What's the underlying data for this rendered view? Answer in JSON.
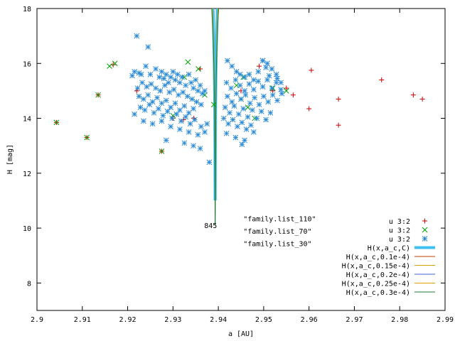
{
  "chart_data": {
    "type": "scatter",
    "xlabel": "a [AU]",
    "ylabel": "H [mag]",
    "xlim": [
      2.9,
      2.99
    ],
    "ylim": [
      7,
      18
    ],
    "x_ticks": [
      "2.9",
      "2.91",
      "2.92",
      "2.93",
      "2.94",
      "2.95",
      "2.96",
      "2.97",
      "2.98",
      "2.99"
    ],
    "y_ticks": [
      "8",
      "10",
      "12",
      "14",
      "16",
      "18"
    ],
    "grid": false,
    "legend_position": "bottom-right",
    "annotations": [
      {
        "text": "845",
        "x": 2.9383,
        "y": 10.1
      },
      {
        "text": "\"family.list_110\"",
        "x": 2.9455,
        "y": 10.35
      },
      {
        "text": "\"family.list_70\"",
        "x": 2.9455,
        "y": 9.9
      },
      {
        "text": "\"family.list_30\"",
        "x": 2.9455,
        "y": 9.45
      }
    ],
    "center_a": 2.9393,
    "curves": [
      {
        "name": "H(x,a_c,C)",
        "color": "#40c0f0",
        "width": 4,
        "C": 5e-05,
        "yoff": 0
      },
      {
        "name": "H(x,a_c,0.1e-4)",
        "color": "#c04000",
        "width": 1,
        "C": 5e-05,
        "yoff": 1.5
      },
      {
        "name": "H(x,a_c,0.15e-4)",
        "color": "#d0a000",
        "width": 1,
        "C": 5e-05,
        "yoff": 0.65
      },
      {
        "name": "H(x,a_c,0.2e-4)",
        "color": "#4060d0",
        "width": 1,
        "C": 5e-05,
        "yoff": 0
      },
      {
        "name": "H(x,a_c,0.25e-4)",
        "color": "#e0a000",
        "width": 1,
        "C": 5e-05,
        "yoff": -0.5
      },
      {
        "name": "H(x,a_c,0.3e-4)",
        "color": "#1a7a3a",
        "width": 1,
        "C": 5e-05,
        "yoff": -0.9
      }
    ],
    "series": [
      {
        "name": "u 3:2",
        "marker": "plus",
        "color": "#cc0000",
        "points": [
          [
            2.9043,
            13.85
          ],
          [
            2.911,
            13.3
          ],
          [
            2.9135,
            14.85
          ],
          [
            2.9168,
            15.95
          ],
          [
            2.9275,
            12.8
          ],
          [
            2.93,
            14.0
          ],
          [
            2.9323,
            13.95
          ],
          [
            2.9346,
            14.0
          ],
          [
            2.936,
            15.8
          ],
          [
            2.945,
            15.0
          ],
          [
            2.955,
            15.1
          ],
          [
            2.9565,
            14.85
          ],
          [
            2.96,
            14.35
          ],
          [
            2.9605,
            15.75
          ],
          [
            2.9665,
            14.7
          ],
          [
            2.9665,
            13.75
          ],
          [
            2.976,
            15.4
          ],
          [
            2.983,
            14.85
          ],
          [
            2.985,
            14.7
          ],
          [
            2.949,
            15.9
          ],
          [
            2.922,
            15.0
          ],
          [
            2.952,
            15.0
          ]
        ]
      },
      {
        "name": "u 3:2",
        "marker": "cross",
        "color": "#00a000",
        "points": [
          [
            2.9043,
            13.85
          ],
          [
            2.911,
            13.3
          ],
          [
            2.9135,
            14.85
          ],
          [
            2.916,
            15.9
          ],
          [
            2.9172,
            16.0
          ],
          [
            2.9275,
            12.8
          ],
          [
            2.93,
            14.1
          ],
          [
            2.9333,
            16.05
          ],
          [
            2.9356,
            15.8
          ],
          [
            2.937,
            14.85
          ],
          [
            2.939,
            14.5
          ],
          [
            2.944,
            15.2
          ],
          [
            2.945,
            14.7
          ],
          [
            2.9455,
            15.5
          ],
          [
            2.9465,
            14.4
          ],
          [
            2.948,
            14.0
          ],
          [
            2.955,
            15.0
          ],
          [
            2.9325,
            15.5
          ],
          [
            2.952,
            15.1
          ]
        ]
      },
      {
        "name": "u 3:2",
        "marker": "star",
        "color": "#2a8ad8",
        "points": [
          [
            2.922,
            17.0
          ],
          [
            2.9245,
            16.6
          ],
          [
            2.9215,
            15.7
          ],
          [
            2.921,
            15.55
          ],
          [
            2.9225,
            15.65
          ],
          [
            2.923,
            15.6
          ],
          [
            2.924,
            15.9
          ],
          [
            2.925,
            15.6
          ],
          [
            2.9262,
            15.8
          ],
          [
            2.927,
            15.5
          ],
          [
            2.9275,
            15.7
          ],
          [
            2.928,
            15.45
          ],
          [
            2.9285,
            15.6
          ],
          [
            2.929,
            15.3
          ],
          [
            2.9295,
            15.5
          ],
          [
            2.93,
            15.7
          ],
          [
            2.9305,
            15.4
          ],
          [
            2.931,
            15.6
          ],
          [
            2.9315,
            15.3
          ],
          [
            2.932,
            15.5
          ],
          [
            2.9328,
            15.2
          ],
          [
            2.9335,
            15.6
          ],
          [
            2.934,
            15.3
          ],
          [
            2.9345,
            15.1
          ],
          [
            2.935,
            15.4
          ],
          [
            2.9355,
            15.0
          ],
          [
            2.936,
            15.2
          ],
          [
            2.9365,
            14.9
          ],
          [
            2.937,
            15.0
          ],
          [
            2.9222,
            15.1
          ],
          [
            2.9232,
            15.3
          ],
          [
            2.9242,
            15.15
          ],
          [
            2.9252,
            15.25
          ],
          [
            2.9262,
            15.1
          ],
          [
            2.9272,
            15.0
          ],
          [
            2.9282,
            15.2
          ],
          [
            2.9292,
            14.95
          ],
          [
            2.9302,
            15.05
          ],
          [
            2.9312,
            14.85
          ],
          [
            2.9322,
            14.95
          ],
          [
            2.9332,
            14.8
          ],
          [
            2.9342,
            14.7
          ],
          [
            2.9352,
            14.6
          ],
          [
            2.9362,
            14.5
          ],
          [
            2.9225,
            14.8
          ],
          [
            2.9235,
            14.7
          ],
          [
            2.9245,
            14.85
          ],
          [
            2.9255,
            14.6
          ],
          [
            2.9265,
            14.75
          ],
          [
            2.9275,
            14.55
          ],
          [
            2.9285,
            14.65
          ],
          [
            2.9295,
            14.4
          ],
          [
            2.9305,
            14.55
          ],
          [
            2.9315,
            14.3
          ],
          [
            2.9325,
            14.45
          ],
          [
            2.9335,
            14.2
          ],
          [
            2.9345,
            14.35
          ],
          [
            2.9228,
            14.4
          ],
          [
            2.9238,
            14.3
          ],
          [
            2.9248,
            14.5
          ],
          [
            2.9258,
            14.2
          ],
          [
            2.9268,
            14.35
          ],
          [
            2.9278,
            14.1
          ],
          [
            2.9288,
            14.25
          ],
          [
            2.9298,
            14.0
          ],
          [
            2.9308,
            14.15
          ],
          [
            2.9318,
            13.9
          ],
          [
            2.9328,
            14.05
          ],
          [
            2.9338,
            13.8
          ],
          [
            2.9348,
            13.95
          ],
          [
            2.9215,
            14.15
          ],
          [
            2.9235,
            13.9
          ],
          [
            2.9255,
            13.8
          ],
          [
            2.9275,
            13.9
          ],
          [
            2.9295,
            13.7
          ],
          [
            2.9315,
            13.6
          ],
          [
            2.9335,
            13.5
          ],
          [
            2.9355,
            13.4
          ],
          [
            2.9285,
            13.2
          ],
          [
            2.9325,
            13.1
          ],
          [
            2.9345,
            13.0
          ],
          [
            2.936,
            12.9
          ],
          [
            2.937,
            13.5
          ],
          [
            2.9375,
            13.8
          ],
          [
            2.938,
            12.4
          ],
          [
            2.9362,
            13.7
          ],
          [
            2.942,
            16.1
          ],
          [
            2.943,
            15.9
          ],
          [
            2.944,
            15.7
          ],
          [
            2.9448,
            15.6
          ],
          [
            2.9458,
            15.5
          ],
          [
            2.9468,
            15.6
          ],
          [
            2.9478,
            15.4
          ],
          [
            2.9488,
            15.7
          ],
          [
            2.9498,
            16.1
          ],
          [
            2.9508,
            16.0
          ],
          [
            2.9518,
            15.8
          ],
          [
            2.9528,
            15.6
          ],
          [
            2.9538,
            15.3
          ],
          [
            2.9418,
            15.3
          ],
          [
            2.9428,
            15.1
          ],
          [
            2.9438,
            15.4
          ],
          [
            2.9448,
            15.2
          ],
          [
            2.9458,
            15.0
          ],
          [
            2.9468,
            15.25
          ],
          [
            2.9478,
            15.05
          ],
          [
            2.9488,
            15.35
          ],
          [
            2.9498,
            15.15
          ],
          [
            2.9508,
            15.4
          ],
          [
            2.9518,
            15.1
          ],
          [
            2.9528,
            15.3
          ],
          [
            2.9538,
            15.05
          ],
          [
            2.942,
            14.8
          ],
          [
            2.943,
            14.6
          ],
          [
            2.944,
            14.9
          ],
          [
            2.945,
            14.7
          ],
          [
            2.946,
            14.85
          ],
          [
            2.947,
            14.55
          ],
          [
            2.948,
            14.75
          ],
          [
            2.949,
            14.5
          ],
          [
            2.95,
            14.8
          ],
          [
            2.951,
            14.6
          ],
          [
            2.952,
            14.85
          ],
          [
            2.953,
            14.65
          ],
          [
            2.954,
            14.9
          ],
          [
            2.9415,
            14.4
          ],
          [
            2.9425,
            14.2
          ],
          [
            2.9435,
            14.45
          ],
          [
            2.9445,
            14.15
          ],
          [
            2.9455,
            14.35
          ],
          [
            2.9465,
            14.05
          ],
          [
            2.9475,
            14.3
          ],
          [
            2.9485,
            14.0
          ],
          [
            2.9495,
            14.25
          ],
          [
            2.9505,
            13.95
          ],
          [
            2.9515,
            14.2
          ],
          [
            2.9412,
            14.0
          ],
          [
            2.9422,
            13.8
          ],
          [
            2.9432,
            13.95
          ],
          [
            2.9442,
            13.7
          ],
          [
            2.9452,
            13.85
          ],
          [
            2.9462,
            13.6
          ],
          [
            2.9472,
            13.75
          ],
          [
            2.9418,
            13.45
          ],
          [
            2.9438,
            13.3
          ],
          [
            2.9458,
            13.2
          ],
          [
            2.9478,
            13.5
          ],
          [
            2.9452,
            13.05
          ],
          [
            2.9498,
            16.1
          ],
          [
            2.9505,
            15.85
          ],
          [
            2.9512,
            15.55
          ],
          [
            2.953,
            15.45
          ]
        ]
      }
    ]
  }
}
